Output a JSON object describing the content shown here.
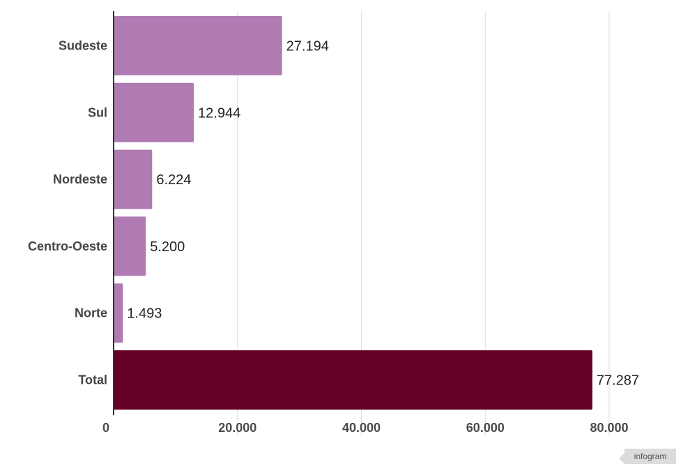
{
  "chart_data": {
    "type": "bar",
    "orientation": "horizontal",
    "categories": [
      "Sudeste",
      "Sul",
      "Nordeste",
      "Centro-Oeste",
      "Norte",
      "Total"
    ],
    "values": [
      27194,
      12944,
      6224,
      5200,
      1493,
      77287
    ],
    "value_labels": [
      "27.194",
      "12.944",
      "6.224",
      "5.200",
      "1.493",
      "77.287"
    ],
    "xlim": [
      0,
      80000
    ],
    "x_ticks": [
      0,
      20000,
      40000,
      60000,
      80000
    ],
    "x_tick_labels": [
      "0",
      "20.000",
      "40.000",
      "60.000",
      "80.000"
    ],
    "grid": true,
    "colors": {
      "regions": "#b07ab3",
      "total": "#660026",
      "grid": "#dddddd",
      "axis": "#333333"
    }
  },
  "watermark": "infogram"
}
